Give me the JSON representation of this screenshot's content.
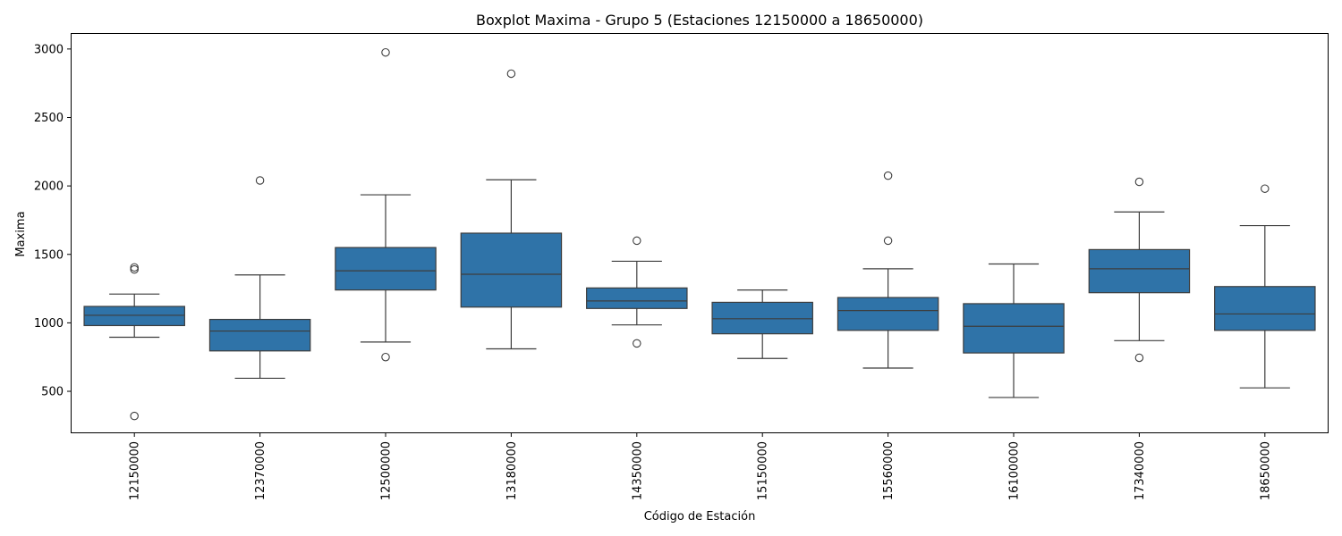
{
  "chart_data": {
    "type": "box",
    "title": "Boxplot Maxima - Grupo 5 (Estaciones 12150000 a 18650000)",
    "xlabel": "Código de Estación",
    "ylabel": "Maxima",
    "ylim": [
      200,
      3110
    ],
    "yticks": [
      500,
      1000,
      1500,
      2000,
      2500,
      3000
    ],
    "grid": false,
    "legend": "none",
    "box_color": "#2f73a8",
    "line_color": "#3d3d3d",
    "categories": [
      "12150000",
      "12370000",
      "12500000",
      "13180000",
      "14350000",
      "15150000",
      "15560000",
      "16100000",
      "17340000",
      "18650000"
    ],
    "boxes": [
      {
        "label": "12150000",
        "whisker_low": 895,
        "q1": 980,
        "median": 1055,
        "q3": 1120,
        "whisker_high": 1210,
        "outliers": [
          1390,
          1405,
          320
        ]
      },
      {
        "label": "12370000",
        "whisker_low": 595,
        "q1": 795,
        "median": 940,
        "q3": 1025,
        "whisker_high": 1350,
        "outliers": [
          2040
        ]
      },
      {
        "label": "12500000",
        "whisker_low": 860,
        "q1": 1240,
        "median": 1380,
        "q3": 1550,
        "whisker_high": 1935,
        "outliers": [
          2975,
          750
        ]
      },
      {
        "label": "13180000",
        "whisker_low": 810,
        "q1": 1115,
        "median": 1355,
        "q3": 1655,
        "whisker_high": 2045,
        "outliers": [
          2820
        ]
      },
      {
        "label": "14350000",
        "whisker_low": 985,
        "q1": 1105,
        "median": 1160,
        "q3": 1255,
        "whisker_high": 1450,
        "outliers": [
          1600,
          850
        ]
      },
      {
        "label": "15150000",
        "whisker_low": 740,
        "q1": 920,
        "median": 1030,
        "q3": 1150,
        "whisker_high": 1240,
        "outliers": []
      },
      {
        "label": "15560000",
        "whisker_low": 670,
        "q1": 945,
        "median": 1090,
        "q3": 1185,
        "whisker_high": 1395,
        "outliers": [
          2075,
          1600
        ]
      },
      {
        "label": "16100000",
        "whisker_low": 455,
        "q1": 780,
        "median": 975,
        "q3": 1140,
        "whisker_high": 1430,
        "outliers": []
      },
      {
        "label": "17340000",
        "whisker_low": 870,
        "q1": 1220,
        "median": 1395,
        "q3": 1535,
        "whisker_high": 1810,
        "outliers": [
          2030,
          745
        ]
      },
      {
        "label": "18650000",
        "whisker_low": 525,
        "q1": 945,
        "median": 1065,
        "q3": 1265,
        "whisker_high": 1710,
        "outliers": [
          1980
        ]
      }
    ]
  }
}
